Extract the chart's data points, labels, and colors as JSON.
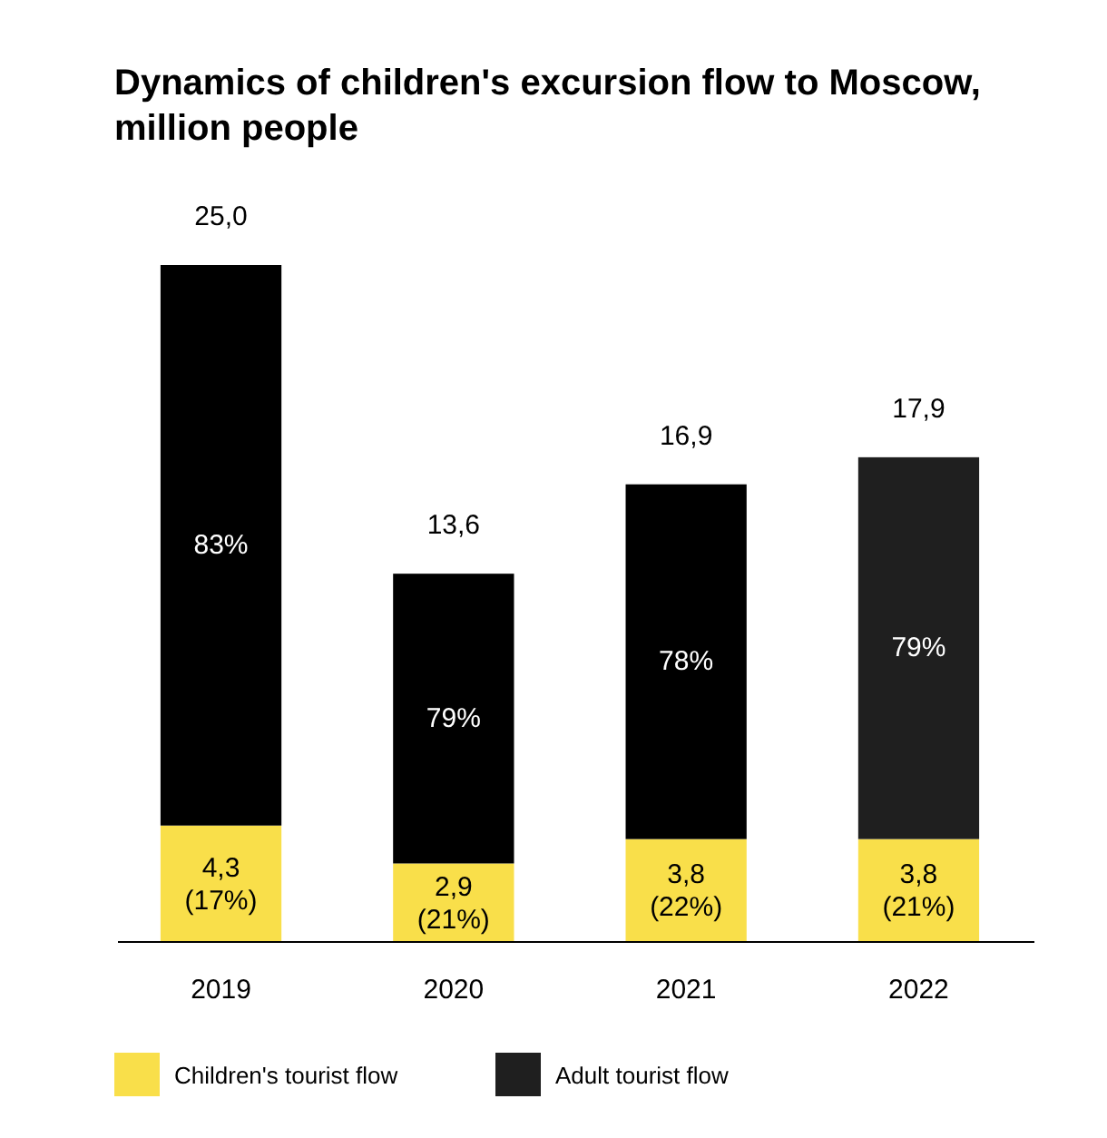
{
  "chart_data": {
    "type": "bar",
    "title": "Dynamics of children's excursion flow to Moscow, million people",
    "categories": [
      "2019",
      "2020",
      "2021",
      "2022"
    ],
    "stacked": true,
    "legend": "bottom",
    "series": [
      {
        "name": "Children's tourist flow",
        "color": "#f9df4a",
        "values": [
          4.3,
          2.9,
          3.8,
          3.8
        ],
        "value_labels": [
          "4,3 (17%)",
          "2,9 (21%)",
          "3,8 (22%)",
          "3,8 (21%)"
        ]
      },
      {
        "name": "Adult tourist flow",
        "color": "#1f1f1f",
        "colors": [
          "#000000",
          "#000000",
          "#000000",
          "#1f1f1f"
        ],
        "values": [
          20.7,
          10.7,
          13.1,
          14.1
        ]
      }
    ],
    "totals": [
      "25,0",
      "13,6",
      "16,9",
      "17,9"
    ],
    "annotations": [
      "83%",
      "79%",
      "78%",
      "79%"
    ]
  }
}
